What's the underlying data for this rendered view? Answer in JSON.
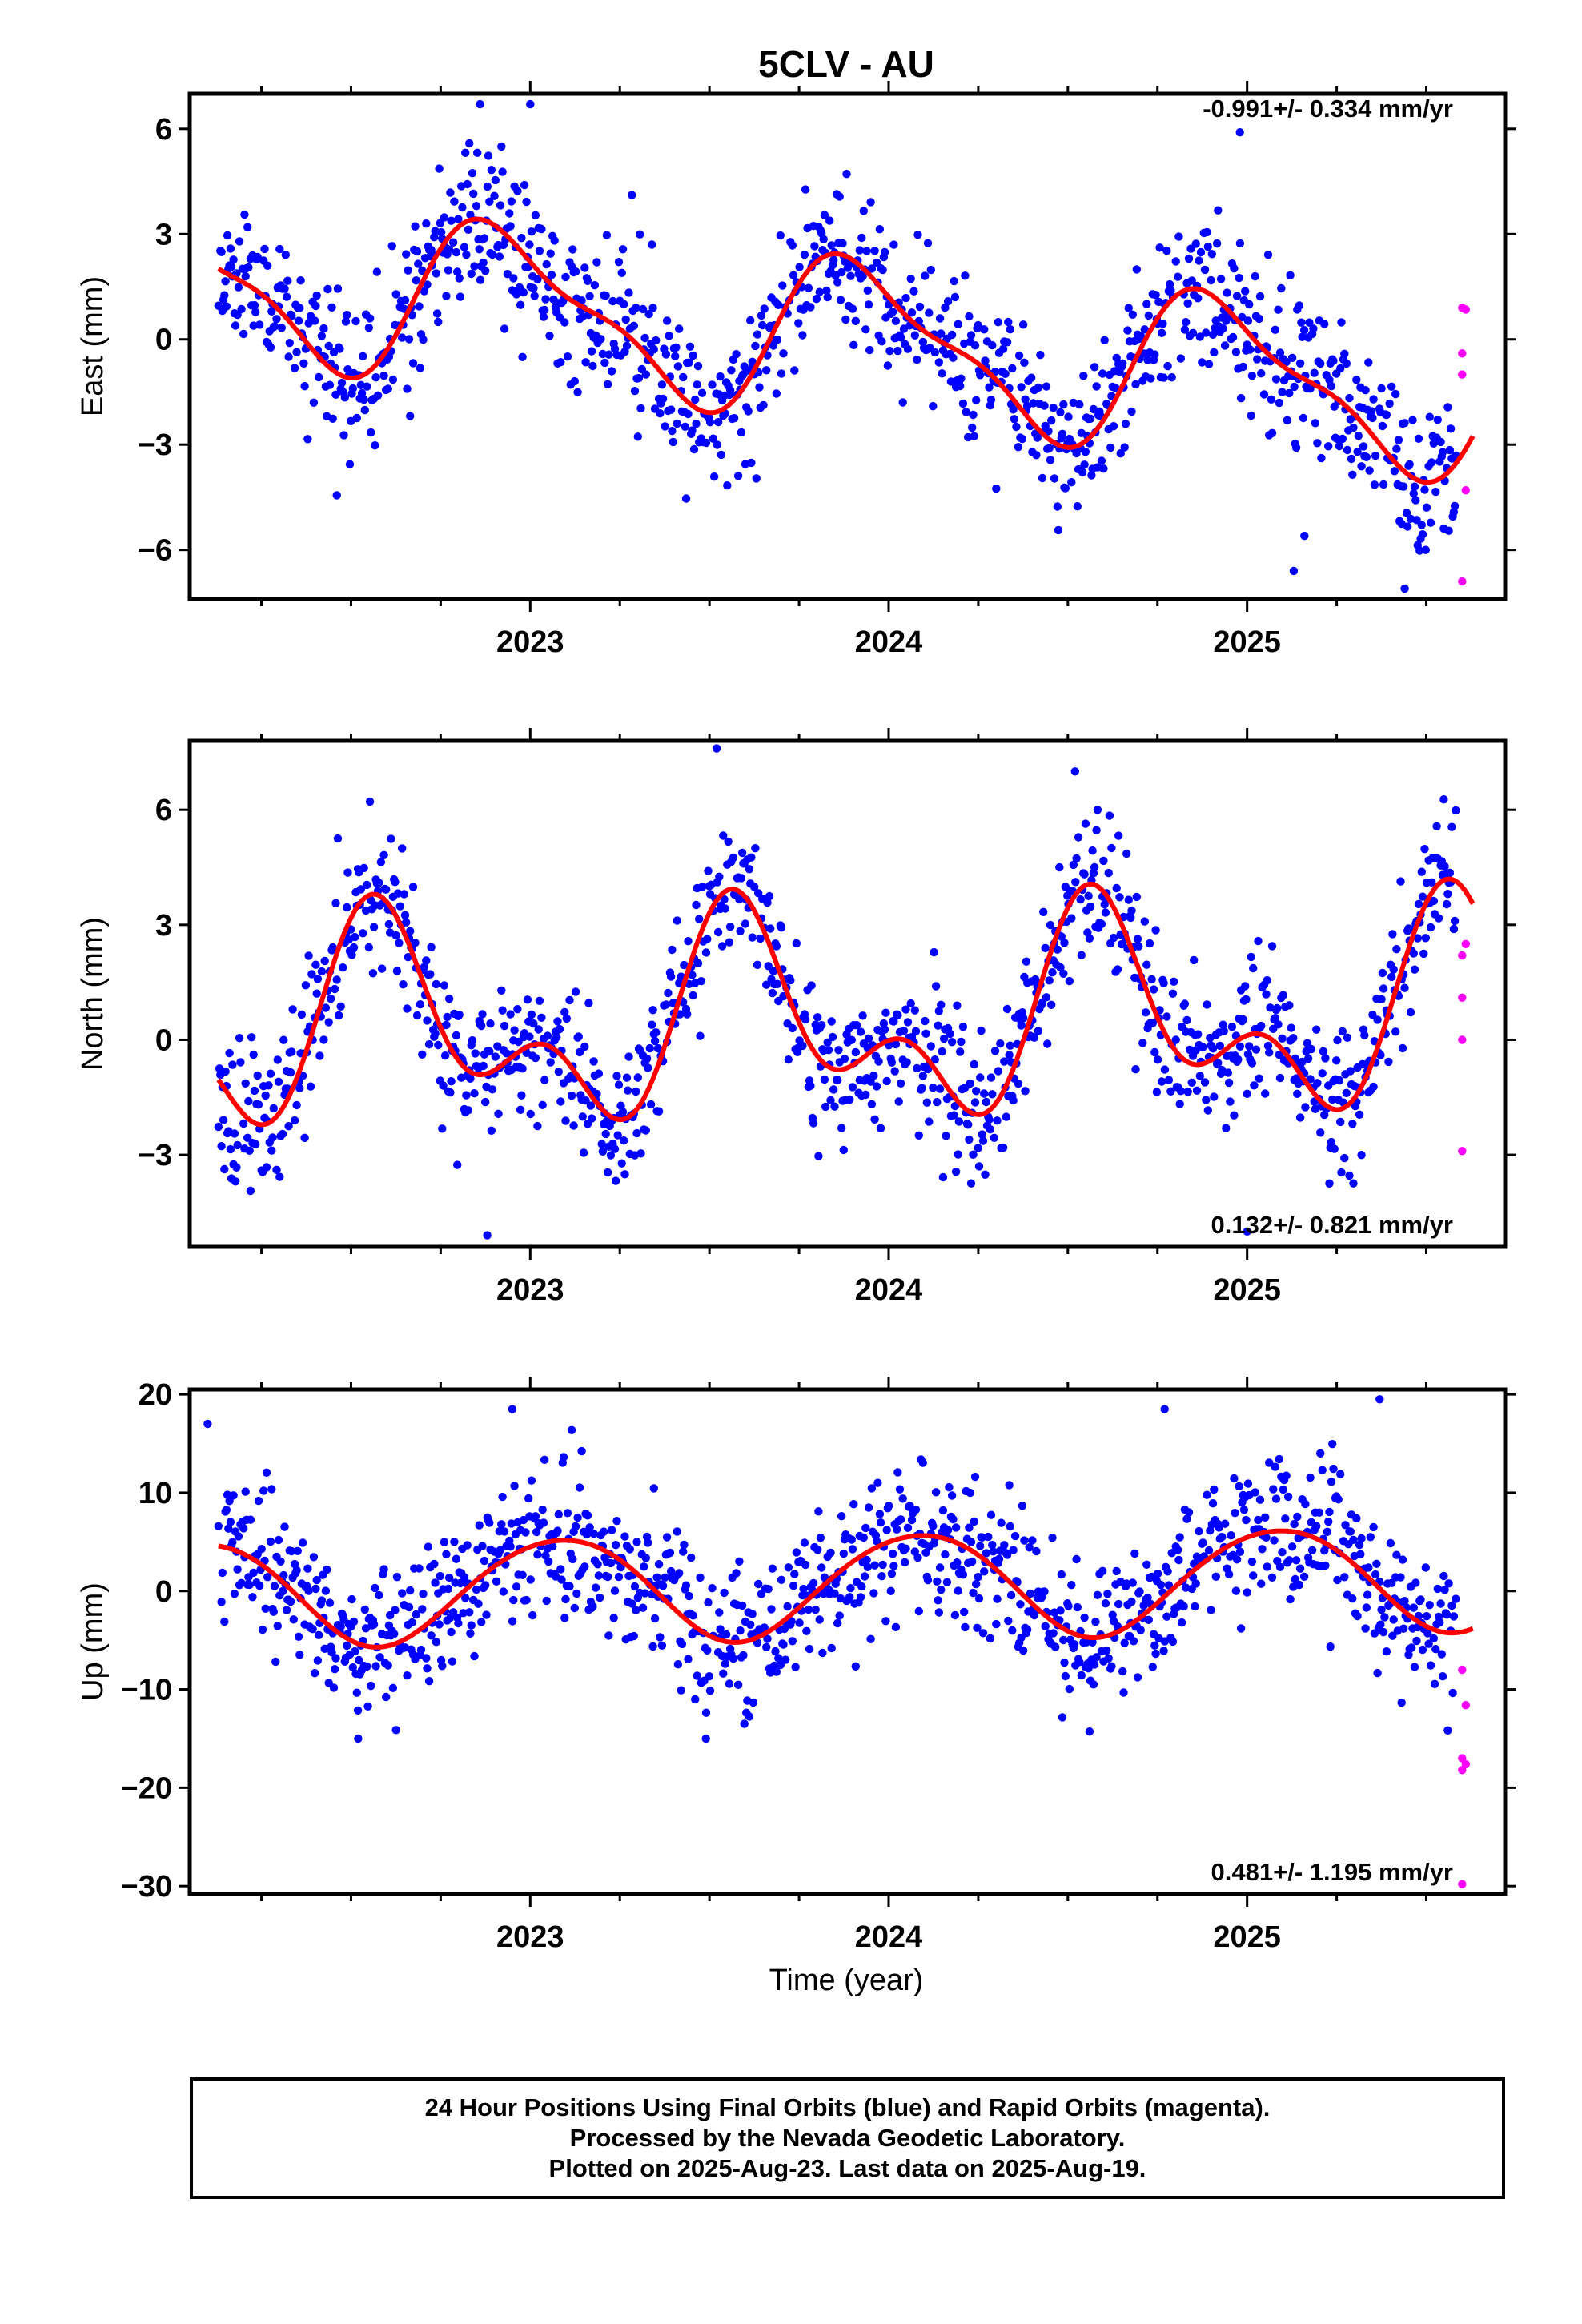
{
  "figure": {
    "title": "5CLV - AU",
    "xlabel": "Time (year)",
    "caption": [
      "24 Hour Positions Using Final Orbits (blue) and Rapid Orbits (magenta).",
      "Processed by the Nevada Geodetic Laboratory.",
      "Plotted on 2025-Aug-23. Last data on 2025-Aug-19."
    ],
    "colors": {
      "final_orbits": "#0000ff",
      "rapid_orbits": "#ff00ff",
      "fit": "#ff0000"
    }
  },
  "chart_data": [
    {
      "type": "scatter",
      "ylabel": "East (mm)",
      "rate_label": "-0.991+/- 0.334 mm/yr",
      "xlim": [
        2022.05,
        2025.72
      ],
      "ylim": [
        -7.4,
        7.0
      ],
      "yticks": [
        6,
        3,
        0,
        -3,
        -6
      ],
      "ytick_labels": [
        "6",
        "3",
        "0",
        "−3",
        "−6"
      ],
      "xticks": [
        2023,
        2024,
        2025
      ],
      "xtick_labels": [
        "2023",
        "2024",
        "2025"
      ],
      "fit": {
        "x0": 2022.13,
        "x1": 2025.63,
        "offset": 0.0,
        "rate": -0.991,
        "annual_amp": 2.1,
        "annual_peak": 2022.93,
        "semi_amp": 0.7,
        "semi_phase": 2022.3,
        "ref": 2023.88
      },
      "scatter": {
        "sigma": 1.1,
        "wave": [],
        "seed": 11,
        "spacing": 0.0028
      },
      "rapid_points": [
        [
          2025.6,
          0.9
        ],
        [
          2025.61,
          0.85
        ],
        [
          2025.6,
          -0.4
        ],
        [
          2025.6,
          -1.0
        ],
        [
          2025.61,
          -4.3
        ],
        [
          2025.6,
          -6.9
        ]
      ],
      "outliers": [
        [
          2024.98,
          5.9
        ],
        [
          2025.16,
          -5.6
        ],
        [
          2025.13,
          -6.6
        ],
        [
          2025.44,
          -7.1
        ],
        [
          2022.86,
          6.7
        ],
        [
          2023.0,
          6.7
        ]
      ]
    },
    {
      "type": "scatter",
      "ylabel": "North (mm)",
      "rate_label": "0.132+/- 0.821 mm/yr",
      "xlim": [
        2022.05,
        2025.72
      ],
      "ylim": [
        -5.4,
        7.8
      ],
      "yticks": [
        6,
        3,
        0,
        -3
      ],
      "ytick_labels": [
        "6",
        "3",
        "0",
        "−3"
      ],
      "xticks": [
        2023,
        2024,
        2025
      ],
      "xtick_labels": [
        "2023",
        "2024",
        "2025"
      ],
      "fit": {
        "x0": 2022.13,
        "x1": 2025.63,
        "offset": 0.45,
        "rate": 0.132,
        "annual_amp": 2.1,
        "annual_peak": 2022.6,
        "semi_amp": 1.5,
        "semi_phase": 2022.55,
        "ref": 2023.88
      },
      "scatter": {
        "sigma": 0.95,
        "wave": [],
        "seed": 23,
        "spacing": 0.0028
      },
      "rapid_points": [
        [
          2025.61,
          2.5
        ],
        [
          2025.6,
          2.2
        ],
        [
          2025.6,
          1.1
        ],
        [
          2025.6,
          0.0
        ],
        [
          2025.6,
          -2.9
        ]
      ],
      "outliers": [
        [
          2023.52,
          7.6
        ],
        [
          2022.88,
          -5.1
        ],
        [
          2024.52,
          7.0
        ],
        [
          2025.0,
          -5.0
        ]
      ]
    },
    {
      "type": "scatter",
      "ylabel": "Up (mm)",
      "rate_label": "0.481+/- 1.195 mm/yr",
      "xlim": [
        2022.05,
        2025.72
      ],
      "ylim": [
        -30.8,
        20.5
      ],
      "yticks": [
        20,
        10,
        0,
        -10,
        -20,
        -30
      ],
      "ytick_labels": [
        "20",
        "10",
        "0",
        "−10",
        "−20",
        "−30"
      ],
      "xticks": [
        2023,
        2024,
        2025
      ],
      "xtick_labels": [
        "2023",
        "2024",
        "2025"
      ],
      "fit": {
        "x0": 2022.13,
        "x1": 2025.63,
        "offset": 0.6,
        "rate": 0.481,
        "annual_amp": 5.3,
        "annual_peak": 2023.08,
        "semi_amp": 0.4,
        "semi_phase": 2022.3,
        "ref": 2023.88
      },
      "scatter": {
        "sigma": 3.7,
        "wave": [],
        "seed": 37,
        "spacing": 0.0028
      },
      "rapid_points": [
        [
          2025.6,
          -8.0
        ],
        [
          2025.61,
          -11.6
        ],
        [
          2025.6,
          -17.0
        ],
        [
          2025.61,
          -17.6
        ],
        [
          2025.6,
          -18.2
        ],
        [
          2025.6,
          -29.8
        ]
      ],
      "outliers": [
        [
          2022.95,
          18.5
        ],
        [
          2025.37,
          19.5
        ],
        [
          2022.1,
          17.0
        ],
        [
          2024.77,
          18.5
        ],
        [
          2022.52,
          -15.0
        ],
        [
          2023.49,
          -15.0
        ]
      ]
    }
  ]
}
